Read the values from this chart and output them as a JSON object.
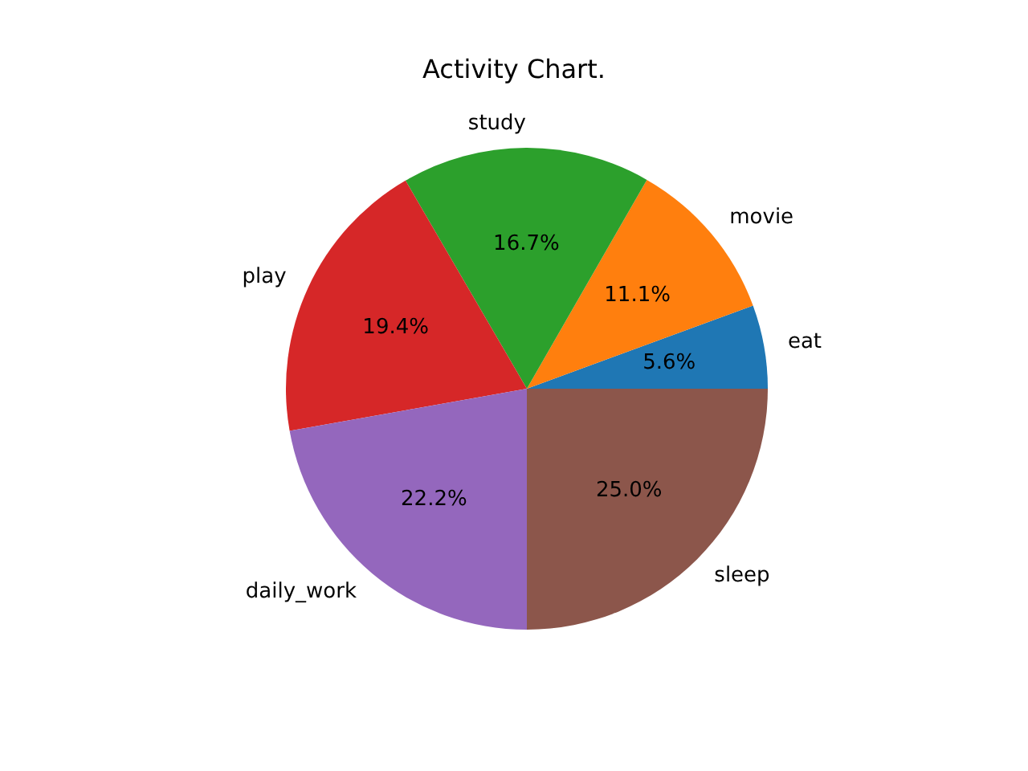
{
  "chart_data": {
    "type": "pie",
    "title": "Activity Chart.",
    "categories": [
      "eat",
      "movie",
      "study",
      "play",
      "daily_work",
      "sleep"
    ],
    "values": [
      5.6,
      11.1,
      16.7,
      19.4,
      22.2,
      25.0
    ],
    "colors": [
      "#1f77b4",
      "#ff7f0e",
      "#2ca02c",
      "#d62728",
      "#9467bd",
      "#8c564b"
    ],
    "value_labels": [
      "5.6%",
      "11.1%",
      "16.7%",
      "19.4%",
      "22.2%",
      "25.0%"
    ],
    "legend": false
  }
}
